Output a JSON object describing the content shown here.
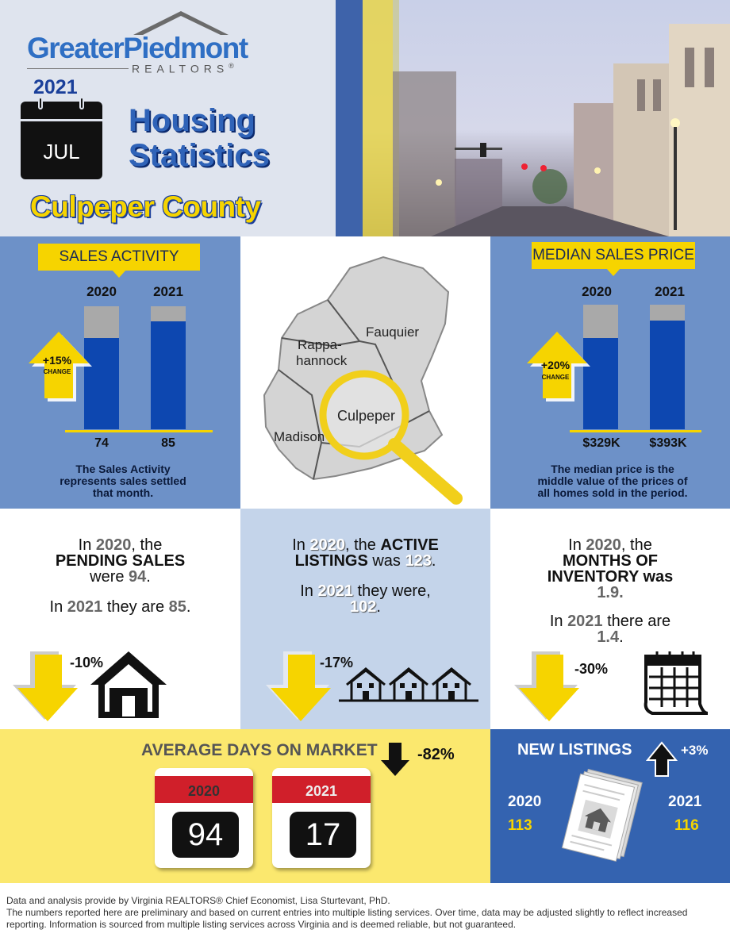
{
  "brand": {
    "name": "GreaterPiedmont",
    "sub": "REALTORS",
    "reg": "®"
  },
  "header": {
    "year": "2021",
    "month": "JUL",
    "title_line1": "Housing",
    "title_line2": "Statistics",
    "county": "Culpeper County"
  },
  "sales_activity": {
    "tag": "SALES ACTIVITY",
    "years": [
      "2020",
      "2021"
    ],
    "values": [
      "74",
      "85"
    ],
    "change_pct": "+15%",
    "change_label": "CHANGE",
    "note": [
      "The Sales Activity",
      "represents sales settled",
      "that month."
    ]
  },
  "map": {
    "labels": [
      "Fauquier",
      "Rappa-",
      "hannock",
      "Culpeper",
      "Madison"
    ]
  },
  "median_price": {
    "tag": "MEDIAN SALES PRICE",
    "years": [
      "2020",
      "2021"
    ],
    "values": [
      "$329K",
      "$393K"
    ],
    "change_pct": "+20%",
    "change_label": "CHANGE",
    "note": [
      "The median price is the",
      "middle value of the prices of",
      "all homes sold in the period."
    ]
  },
  "pending": {
    "l1a": "In ",
    "year1": "2020",
    "l1b": ", the",
    "l2": "PENDING SALES",
    "l3a": "were ",
    "v1": "94",
    "l3b": ".",
    "l4a": "In ",
    "year2": "2021",
    "l4b": " they are ",
    "v2": "85",
    "l4c": ".",
    "pct": "-10%"
  },
  "active": {
    "l1a": "In ",
    "year1": "2020",
    "l1b": ", the ",
    "l1c": "ACTIVE",
    "l2a": "LISTINGS",
    "l2b": " was ",
    "v1": "123",
    "l2c": ".",
    "l3a": "In ",
    "year2": "2021",
    "l3b": " they were,",
    "v2": "102",
    "l4b": ".",
    "pct": "-17%"
  },
  "months": {
    "l1a": "In ",
    "year1": "2020",
    "l1b": ", the",
    "l2": "MONTHS OF",
    "l3": "INVENTORY was",
    "v1": "1.9.",
    "l5a": "In ",
    "year2": "2021",
    "l5b": " there are",
    "v2": "1.4",
    "l6b": ".",
    "pct": "-30%"
  },
  "days_on_market": {
    "title": "AVERAGE DAYS ON MARKET",
    "years": [
      "2020",
      "2021"
    ],
    "values": [
      "94",
      "17"
    ],
    "pct": "-82%"
  },
  "new_listings": {
    "title": "NEW LISTINGS",
    "pct": "+3%",
    "years": [
      "2020",
      "2021"
    ],
    "values": [
      "113",
      "116"
    ]
  },
  "footer": [
    "Data and analysis provide by Virginia REALTORS® Chief Economist, Lisa Sturtevant, PhD.",
    "The numbers reported here are preliminary and based on current entries into multiple listing services. Over time, data may be adjusted slightly to reflect increased reporting. Information is sourced from multiple listing services across Virginia and is deemed reliable, but not guaranteed."
  ],
  "colors": {
    "yellow": "#f6d400",
    "blue": "#0d47b0",
    "panel_blue": "#6d91c8",
    "dark_blue": "#3463b0",
    "red": "#d01f2a"
  }
}
